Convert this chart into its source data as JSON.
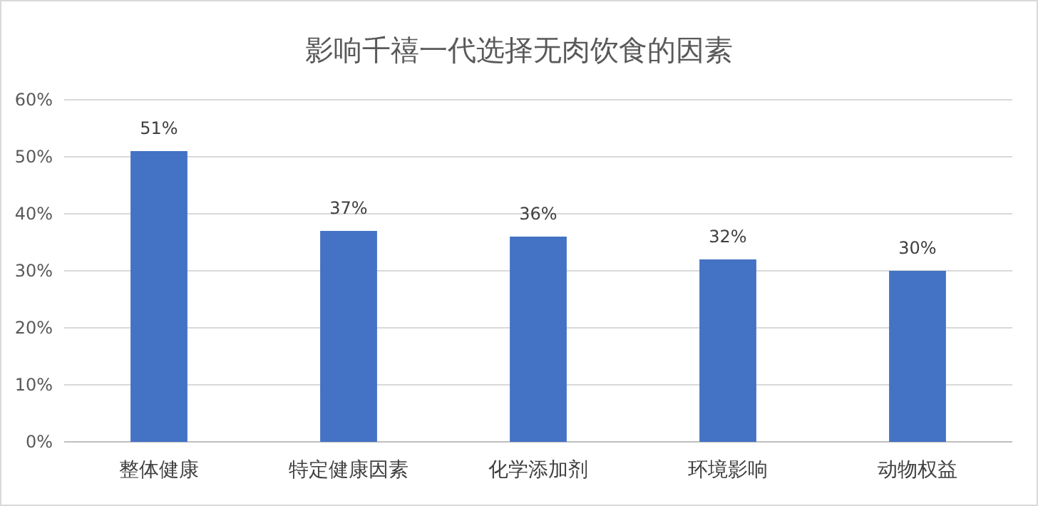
{
  "chart_data": {
    "type": "bar",
    "title": "影响千禧一代选择无肉饮食的因素",
    "categories": [
      "整体健康",
      "特定健康因素",
      "化学添加剂",
      "环境影响",
      "动物权益"
    ],
    "values": [
      51,
      37,
      36,
      32,
      30
    ],
    "value_labels": [
      "51%",
      "37%",
      "36%",
      "32%",
      "30%"
    ],
    "color": "#4472c4",
    "ylim": [
      0,
      60
    ],
    "yticks": [
      {
        "value": 0,
        "label": "0%"
      },
      {
        "value": 10,
        "label": "10%"
      },
      {
        "value": 20,
        "label": "20%"
      },
      {
        "value": 30,
        "label": "30%"
      },
      {
        "value": 40,
        "label": "40%"
      },
      {
        "value": 50,
        "label": "50%"
      },
      {
        "value": 60,
        "label": "60%"
      }
    ],
    "grid": "y"
  }
}
